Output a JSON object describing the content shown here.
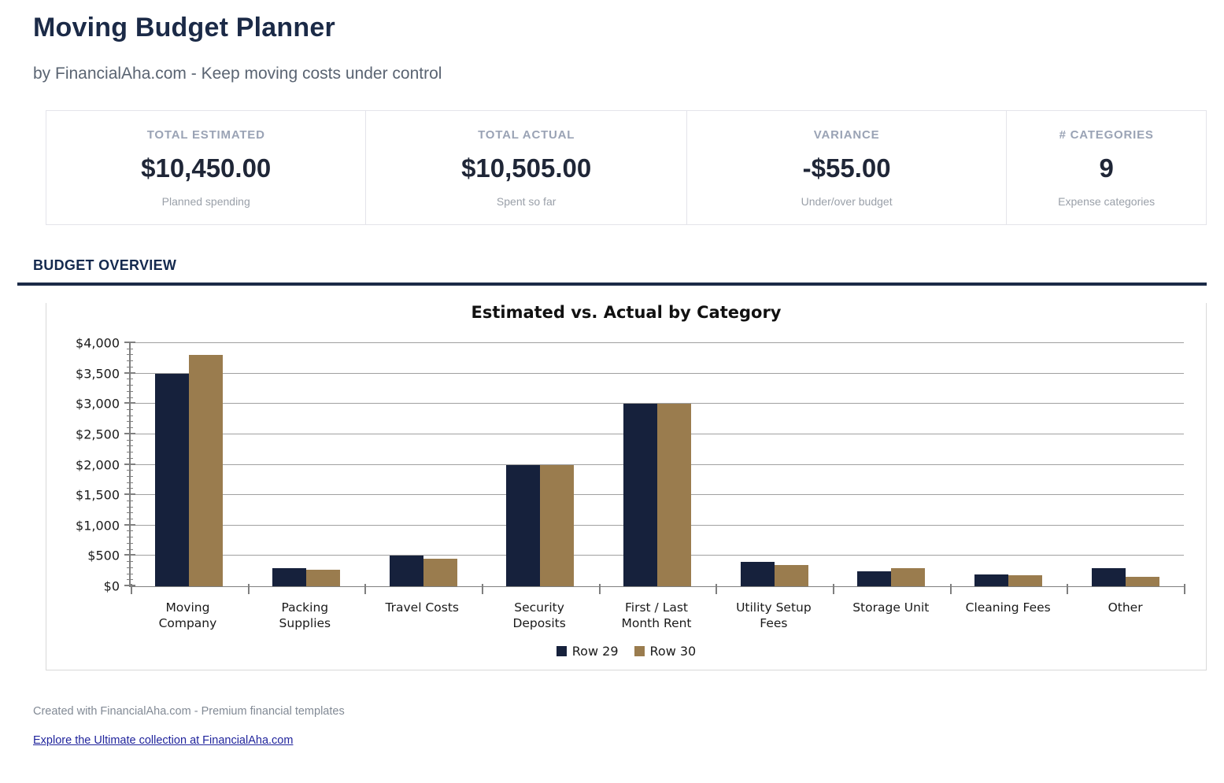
{
  "page": {
    "title": "Moving Budget Planner",
    "subtitle": "by FinancialAha.com - Keep moving costs under control"
  },
  "stats": {
    "cards": [
      {
        "label": "TOTAL ESTIMATED",
        "value": "$10,450.00",
        "sublabel": "Planned spending"
      },
      {
        "label": "TOTAL ACTUAL",
        "value": "$10,505.00",
        "sublabel": "Spent so far"
      },
      {
        "label": "VARIANCE",
        "value": "-$55.00",
        "sublabel": "Under/over budget"
      },
      {
        "label": "# CATEGORIES",
        "value": "9",
        "sublabel": "Expense categories"
      }
    ]
  },
  "section": {
    "title": "BUDGET OVERVIEW"
  },
  "chart_data": {
    "type": "bar",
    "title": "Estimated vs. Actual by Category",
    "categories": [
      "Moving\nCompany",
      "Packing\nSupplies",
      "Travel Costs",
      "Security\nDeposits",
      "First / Last\nMonth Rent",
      "Utility Setup\nFees",
      "Storage Unit",
      "Cleaning Fees",
      "Other"
    ],
    "series": [
      {
        "name": "Row 29",
        "color": "#16213c",
        "values": [
          3500,
          300,
          500,
          2000,
          3000,
          400,
          250,
          200,
          300
        ]
      },
      {
        "name": "Row 30",
        "color": "#9a7c4e",
        "values": [
          3800,
          270,
          450,
          2000,
          3000,
          350,
          300,
          185,
          150
        ]
      }
    ],
    "xlabel": "",
    "ylabel": "",
    "ylim": [
      0,
      4000
    ],
    "ytick_step": 500,
    "minor_tick_step": 100,
    "ytick_prefix": "$",
    "grid": true,
    "legend_position": "bottom"
  },
  "footer": {
    "credit": "Created with FinancialAha.com - Premium financial templates",
    "link": "Explore the Ultimate collection at FinancialAha.com"
  },
  "colors": {
    "accent_navy": "#1b2a47",
    "series_estimated": "#16213c",
    "series_actual": "#9a7c4e",
    "link": "#20249c"
  }
}
